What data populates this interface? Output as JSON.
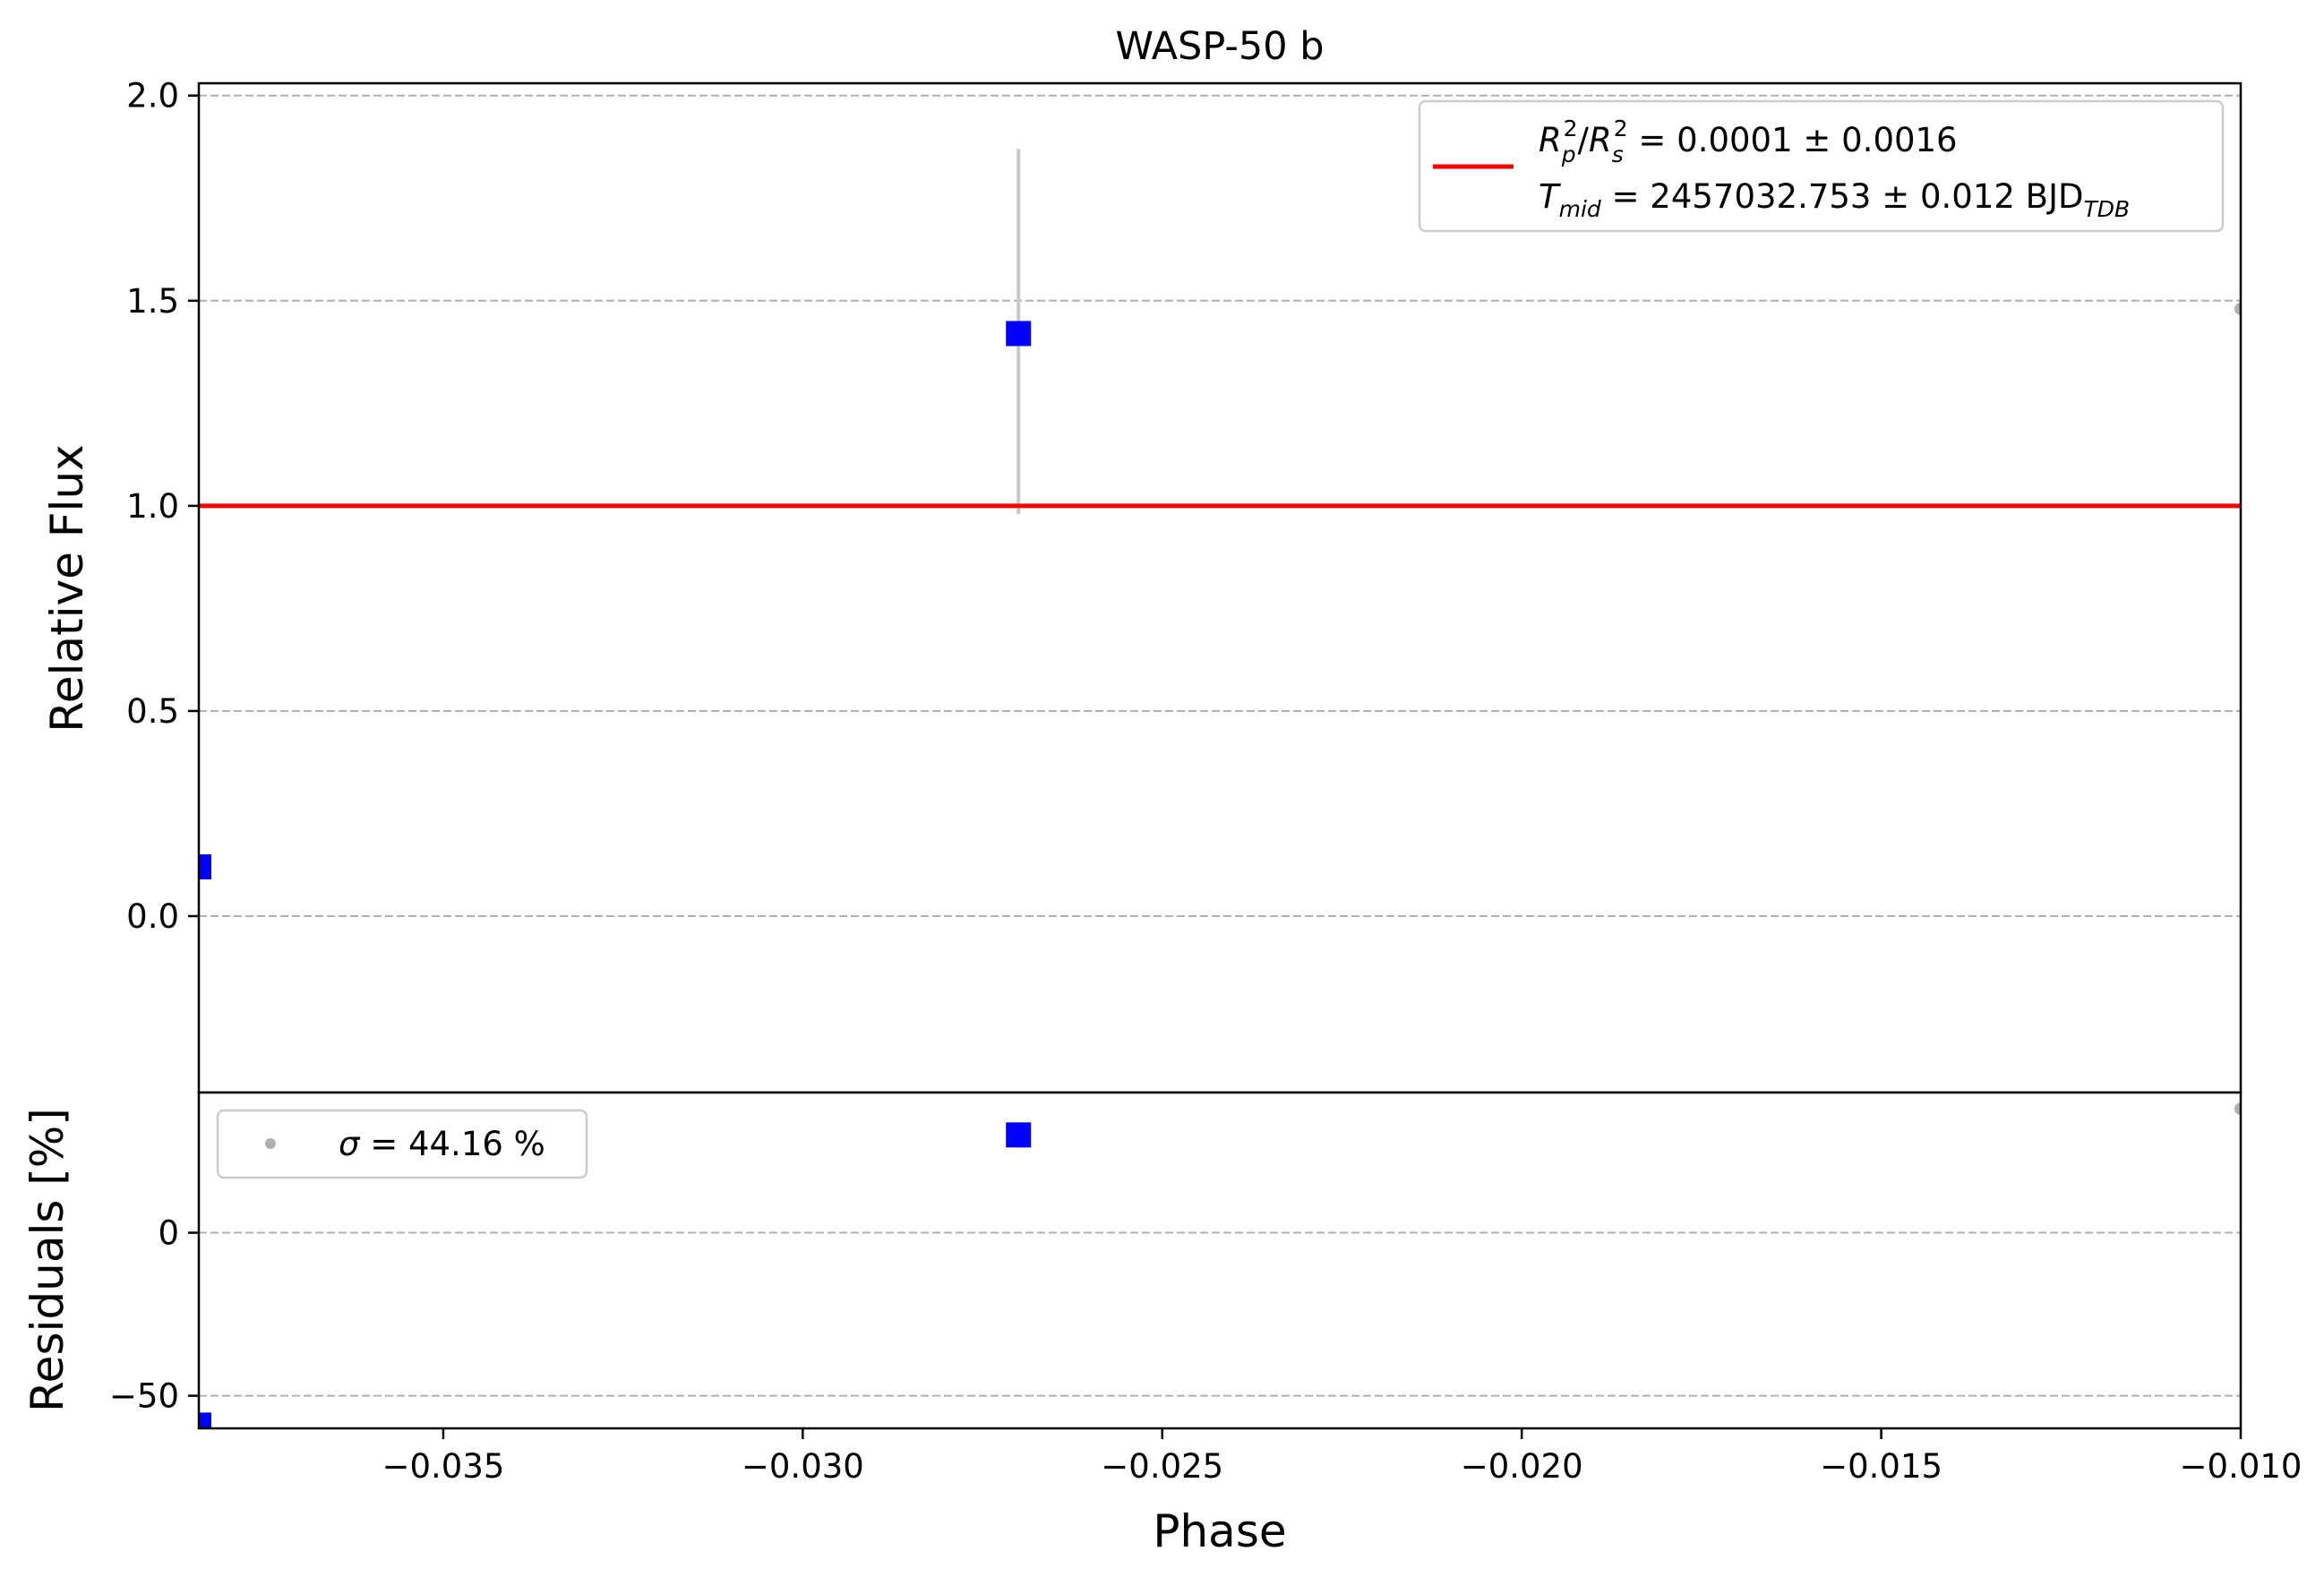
{
  "chart_data": [
    {
      "type": "scatter",
      "title": "WASP-50 b",
      "xlabel": "Phase",
      "ylabel": "Relative Flux",
      "xlim": [
        -0.0384,
        -0.01
      ],
      "ylim": [
        -0.43,
        2.03
      ],
      "yticks": [
        0.0,
        0.5,
        1.0,
        1.5,
        2.0
      ],
      "ytick_labels": [
        "0.0",
        "0.5",
        "1.0",
        "1.5",
        "2.0"
      ],
      "grid": "y-dashed",
      "legend_position": "upper-right",
      "series": [
        {
          "kind": "points",
          "marker": "square",
          "color": "#0000ff",
          "x": [
            -0.0384,
            -0.027
          ],
          "y": [
            0.12,
            1.42
          ]
        },
        {
          "kind": "points",
          "marker": "circle",
          "color": "#b0b0b0",
          "x": [
            -0.01
          ],
          "y": [
            1.48
          ]
        },
        {
          "kind": "errorbar",
          "color": "#c8c8c8",
          "x": [
            -0.027
          ],
          "ylow": [
            0.98
          ],
          "yhigh": [
            1.87
          ]
        },
        {
          "kind": "line",
          "color": "#ff0000",
          "x": [
            -0.0384,
            -0.01
          ],
          "y": [
            1.0,
            1.0
          ]
        }
      ],
      "legend": {
        "line1": {
          "main_a": "R",
          "sub_a": "p",
          "sup_a": "2",
          "sep": "/",
          "main_b": "R",
          "sub_b": "s",
          "sup_b": "2",
          "rest": " = 0.0001 ± 0.0016"
        },
        "line2": {
          "main": "T",
          "sub": "mid",
          "rest": " = 2457032.753 ± 0.012 BJD",
          "unit_sub": "TDB"
        }
      }
    },
    {
      "type": "scatter",
      "title": "",
      "xlabel": "Phase",
      "ylabel": "Residuals [%]",
      "xlim": [
        -0.0384,
        -0.01
      ],
      "ylim": [
        -60,
        43
      ],
      "xticks": [
        -0.035,
        -0.03,
        -0.025,
        -0.02,
        -0.015,
        -0.01
      ],
      "xtick_labels": [
        "−0.035",
        "−0.030",
        "−0.025",
        "−0.020",
        "−0.015",
        "−0.010"
      ],
      "yticks": [
        -50,
        0
      ],
      "ytick_labels": [
        "−50",
        "0"
      ],
      "grid": "y-dashed",
      "legend_position": "upper-left",
      "series": [
        {
          "kind": "points",
          "marker": "square",
          "color": "#0000ff",
          "x": [
            -0.0384,
            -0.027
          ],
          "y": [
            -59,
            30
          ]
        },
        {
          "kind": "points",
          "marker": "circle",
          "color": "#b0b0b0",
          "x": [
            -0.01
          ],
          "y": [
            38
          ]
        }
      ],
      "legend": {
        "symbol": "σ",
        "rest": " = 44.16 %"
      }
    }
  ]
}
